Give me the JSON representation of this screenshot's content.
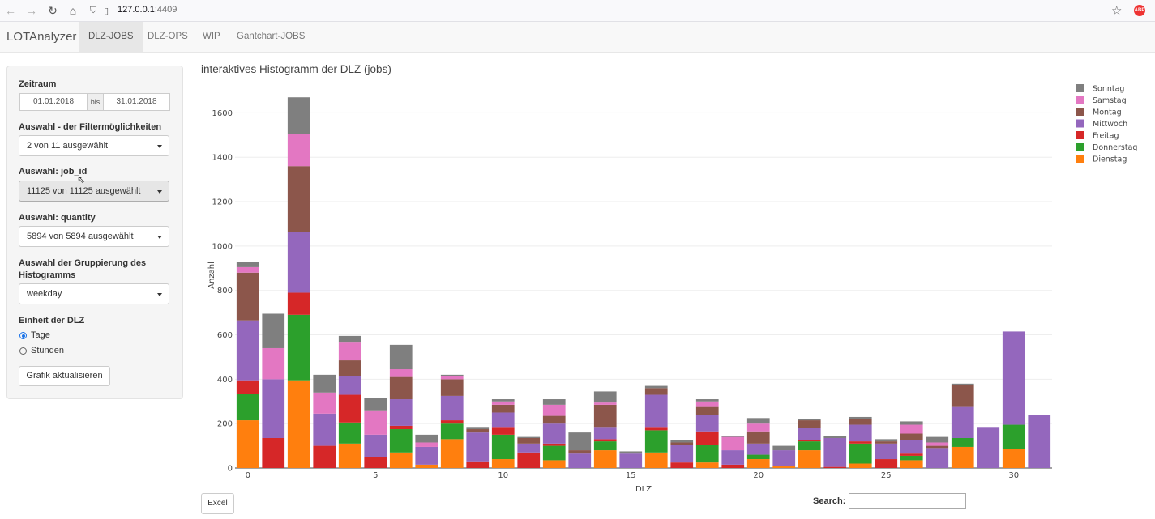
{
  "browser": {
    "url_host": "127.0.0.1",
    "url_port": ":4409",
    "icons": [
      "back-icon",
      "forward-icon",
      "reload-icon",
      "home-icon",
      "shield-icon",
      "page-icon",
      "star-icon",
      "adblock-icon"
    ],
    "abp_label": "ABP"
  },
  "app": {
    "brand": "LOTAnalyzer",
    "tabs": [
      {
        "label": "DLZ-JOBS",
        "active": true
      },
      {
        "label": "DLZ-OPS",
        "active": false
      },
      {
        "label": "WIP",
        "active": false
      },
      {
        "label": "Gantchart-JOBS",
        "active": false
      }
    ]
  },
  "sidebar": {
    "zeitraum_label": "Zeitraum",
    "date_from": "01.01.2018",
    "date_sep": "bis",
    "date_to": "31.01.2018",
    "filter_label": "Auswahl - der Filtermöglichkeiten",
    "filter_value": "2 von 11 ausgewählt",
    "jobid_label": "Auswahl: job_id",
    "jobid_value": "11125 von 11125 ausgewählt",
    "quantity_label": "Auswahl: quantity",
    "quantity_value": "5894 von 5894 ausgewählt",
    "group_label_1": "Auswahl der Gruppierung des",
    "group_label_2": "Histogramms",
    "group_value": "weekday",
    "unit_label": "Einheit der DLZ",
    "unit_options": [
      {
        "label": "Tage",
        "selected": true
      },
      {
        "label": "Stunden",
        "selected": false
      }
    ],
    "update_button": "Grafik aktualisieren"
  },
  "main": {
    "title": "interaktives Histogramm der DLZ (jobs)",
    "excel_button": "Excel",
    "search_label": "Search:",
    "search_value": ""
  },
  "chart_data": {
    "type": "bar",
    "stacked": true,
    "xlabel": "DLZ",
    "ylabel": "Anzahl",
    "xlim": [
      -0.5,
      31.5
    ],
    "ylim": [
      0,
      1700
    ],
    "xticks": [
      0,
      5,
      10,
      15,
      20,
      25,
      30
    ],
    "yticks": [
      0,
      200,
      400,
      600,
      800,
      1000,
      1200,
      1400,
      1600
    ],
    "grid": true,
    "legend_position": "top-right",
    "categories": [
      0,
      1,
      2,
      3,
      4,
      5,
      6,
      7,
      8,
      9,
      10,
      11,
      12,
      13,
      14,
      15,
      16,
      17,
      18,
      19,
      20,
      21,
      22,
      23,
      24,
      25,
      26,
      27,
      28,
      29,
      30,
      31
    ],
    "series": [
      {
        "name": "Dienstag",
        "color": "#ff7f0e",
        "values": [
          215,
          0,
          395,
          0,
          110,
          0,
          70,
          15,
          130,
          0,
          40,
          0,
          35,
          0,
          80,
          0,
          70,
          0,
          25,
          0,
          40,
          10,
          80,
          0,
          20,
          0,
          35,
          0,
          95,
          0,
          85,
          0
        ]
      },
      {
        "name": "Donnerstag",
        "color": "#2ca02c",
        "values": [
          120,
          0,
          295,
          0,
          95,
          0,
          105,
          0,
          70,
          0,
          110,
          0,
          65,
          0,
          40,
          0,
          100,
          0,
          80,
          0,
          20,
          0,
          40,
          0,
          90,
          0,
          20,
          0,
          40,
          0,
          110,
          0
        ]
      },
      {
        "name": "Freitag",
        "color": "#d62728",
        "values": [
          60,
          135,
          100,
          100,
          125,
          50,
          15,
          0,
          15,
          30,
          35,
          70,
          10,
          0,
          10,
          0,
          15,
          25,
          60,
          15,
          0,
          0,
          5,
          5,
          10,
          40,
          10,
          0,
          0,
          0,
          0,
          0
        ]
      },
      {
        "name": "Mittwoch",
        "color": "#9467bd",
        "values": [
          270,
          265,
          275,
          145,
          85,
          100,
          120,
          80,
          110,
          130,
          65,
          40,
          90,
          65,
          55,
          65,
          145,
          80,
          75,
          65,
          50,
          70,
          55,
          130,
          75,
          70,
          60,
          90,
          140,
          185,
          420,
          240
        ]
      },
      {
        "name": "Montag",
        "color": "#8c564b",
        "values": [
          215,
          0,
          295,
          0,
          70,
          0,
          100,
          0,
          75,
          15,
          35,
          25,
          35,
          15,
          100,
          0,
          30,
          10,
          35,
          0,
          55,
          0,
          35,
          0,
          25,
          10,
          30,
          10,
          100,
          0,
          0,
          0
        ]
      },
      {
        "name": "Samstag",
        "color": "#e377c2",
        "values": [
          25,
          140,
          145,
          95,
          80,
          110,
          35,
          20,
          15,
          0,
          15,
          0,
          50,
          0,
          10,
          0,
          0,
          0,
          25,
          60,
          35,
          0,
          0,
          0,
          0,
          0,
          40,
          15,
          0,
          0,
          0,
          0
        ]
      },
      {
        "name": "Sonntag",
        "color": "#7f7f7f",
        "values": [
          25,
          155,
          165,
          80,
          30,
          55,
          110,
          35,
          5,
          10,
          10,
          5,
          25,
          80,
          50,
          10,
          10,
          10,
          10,
          5,
          25,
          20,
          5,
          10,
          10,
          10,
          15,
          25,
          5,
          0,
          0,
          0
        ]
      }
    ]
  }
}
